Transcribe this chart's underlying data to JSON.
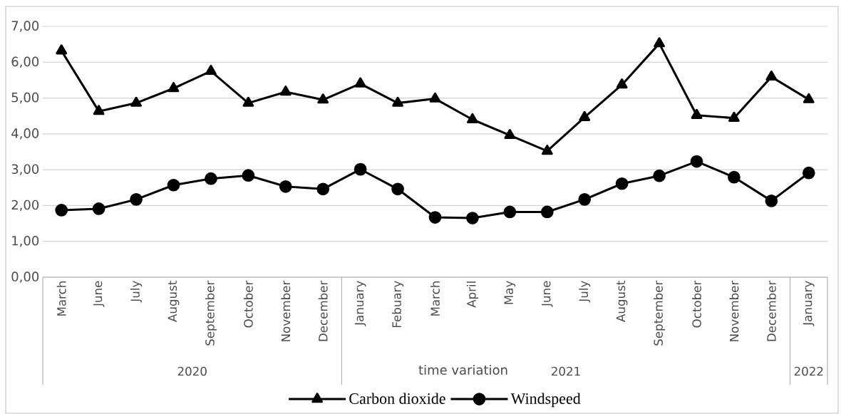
{
  "chart_data": {
    "type": "line",
    "categories": [
      "March",
      "June",
      "July",
      "August",
      "September",
      "October",
      "November",
      "December",
      "January",
      "Febuary",
      "March",
      "April",
      "May",
      "June",
      "July",
      "August",
      "September",
      "October",
      "November",
      "December",
      "January"
    ],
    "xlabel": "time variation",
    "annotations": [
      "2020",
      "2021",
      "2022"
    ],
    "series": [
      {
        "name": "Carbon dioxide",
        "color": "#000000",
        "marker": "triangle",
        "values": [
          6.32,
          4.63,
          4.86,
          5.27,
          5.75,
          4.86,
          5.17,
          4.95,
          5.4,
          4.86,
          4.98,
          4.4,
          3.96,
          3.52,
          4.46,
          5.37,
          6.52,
          4.52,
          4.44,
          5.59,
          4.96
        ]
      },
      {
        "name": "Windspeed",
        "color": "#000000",
        "marker": "circle",
        "values": [
          1.87,
          1.91,
          2.17,
          2.57,
          2.75,
          2.84,
          2.53,
          2.46,
          3.01,
          2.46,
          1.67,
          1.65,
          1.82,
          1.82,
          2.17,
          2.61,
          2.83,
          3.23,
          2.79,
          2.13,
          2.91
        ]
      }
    ],
    "ylim": [
      0,
      7
    ],
    "yticks": [
      {
        "value": 0,
        "label": "0,00"
      },
      {
        "value": 1,
        "label": "1,00"
      },
      {
        "value": 2,
        "label": "2,00"
      },
      {
        "value": 3,
        "label": "3,00"
      },
      {
        "value": 4,
        "label": "4,00"
      },
      {
        "value": 5,
        "label": "5,00"
      },
      {
        "value": 6,
        "label": "6,00"
      },
      {
        "value": 7,
        "label": "7,00"
      }
    ],
    "grid": "y",
    "legend": "bottom"
  }
}
